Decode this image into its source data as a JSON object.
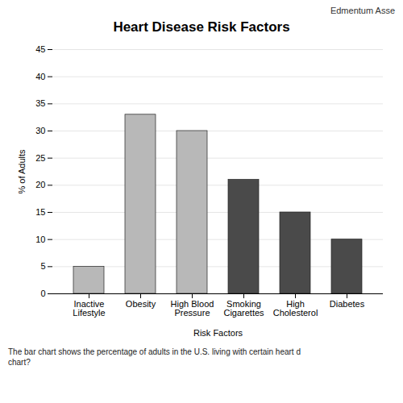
{
  "chart_data": {
    "type": "bar",
    "title": "Heart Disease Risk Factors",
    "categories": [
      "Inactive\nLifestyle",
      "Obesity",
      "High Blood\nPressure",
      "Smoking\nCigarettes",
      "High\nCholesterol",
      "Diabetes"
    ],
    "values": [
      5,
      33,
      30,
      21,
      15,
      10
    ],
    "colors": [
      "#b8b8b8",
      "#b8b8b8",
      "#b8b8b8",
      "#4a4a4a",
      "#4a4a4a",
      "#4a4a4a"
    ],
    "xlabel": "Risk Factors",
    "ylabel": "% of Adults",
    "ylim": [
      0,
      45
    ],
    "yticks": [
      0,
      5,
      10,
      15,
      20,
      25,
      30,
      35,
      40,
      45
    ],
    "grid": true,
    "annotations": [
      "Edmentum Asse",
      "The bar chart shows the percentage of adults in the U.S. living with certain heart d\nchart?"
    ]
  }
}
